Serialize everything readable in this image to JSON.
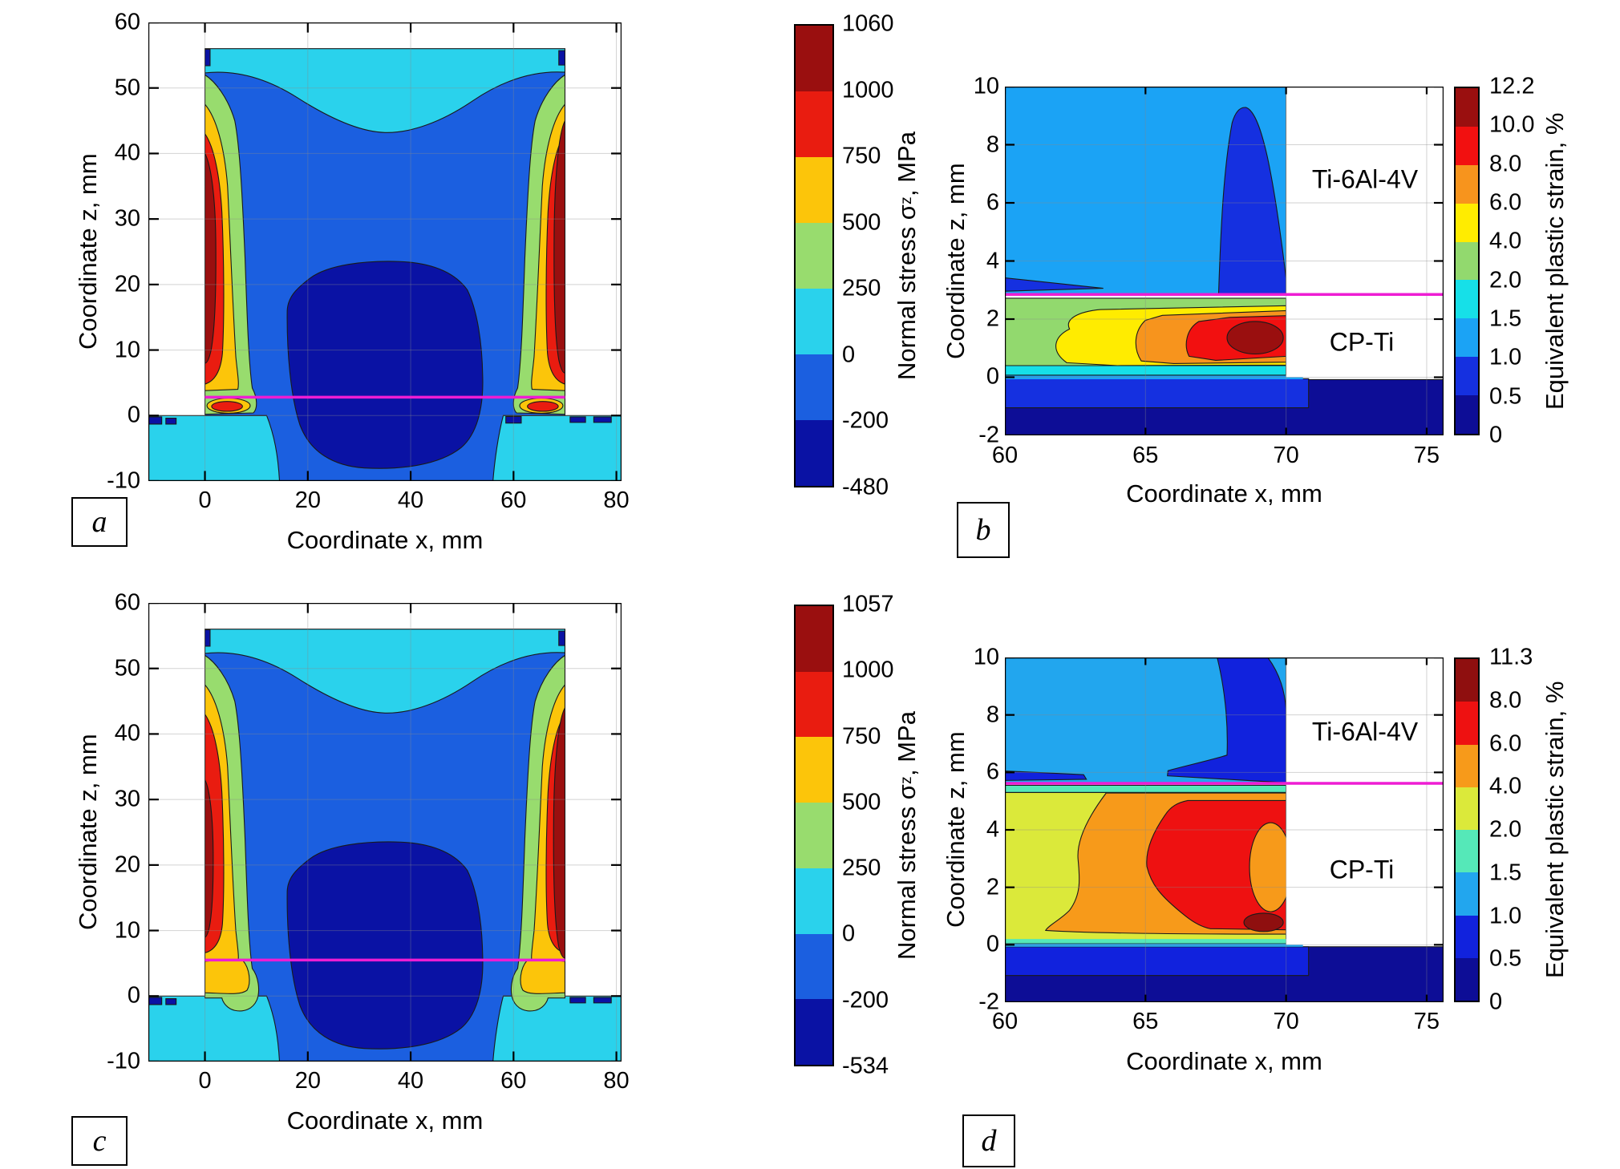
{
  "palette": {
    "interface_line_color": "#ee1dd3",
    "grid_color": "#8a8a8a",
    "frame_color": "#000000"
  },
  "chart_data": [
    {
      "panel": "a",
      "type": "filled_contour",
      "xlabel": "Coordinate x, mm",
      "ylabel": "Coordinate z, mm",
      "xlim": [
        -11,
        81
      ],
      "zlim": [
        -10,
        60
      ],
      "xticks": [
        0,
        20,
        40,
        60,
        80
      ],
      "zticks": [
        60,
        50,
        40,
        30,
        20,
        10,
        0,
        -10
      ],
      "colorbar": {
        "title": {
          "prefix": "Normal stress σ",
          "sub": "z",
          "suffix": ", MPa"
        },
        "tick_labels": [
          "1060",
          "1000",
          "750",
          "500",
          "250",
          "0",
          "-200",
          "-480"
        ],
        "band_colors_top_to_bottom": [
          "#9a0f0f",
          "#e91c10",
          "#fcc50a",
          "#98dc6e",
          "#2ad2ec",
          "#1b5fe0",
          "#0a12a4"
        ]
      },
      "interface_line": {
        "z": 2.8,
        "x_span": [
          0,
          70
        ]
      },
      "annotations": [],
      "description": "Deposited wall (x = 0–70 mm, z = 0–56 mm) on a base plate (z < 0). Tensile normal stress up to ~1060 MPa concentrated along both side surfaces of the wall; compressive core down to −480 MPa in the lower central region; near-zero stress (cyan) in top layers and base plate. Magenta interface line at z ≈ 2.8 mm."
    },
    {
      "panel": "b",
      "type": "filled_contour",
      "xlabel": "Coordinate x, mm",
      "ylabel": "Coordinate z, mm",
      "xlim": [
        60,
        75.6
      ],
      "zlim": [
        -2,
        10
      ],
      "xticks": [
        60,
        65,
        70,
        75
      ],
      "zticks": [
        10,
        8,
        6,
        4,
        2,
        0,
        -2
      ],
      "colorbar": {
        "title": {
          "prefix": "Equivalent plastic strain, %",
          "sub": "",
          "suffix": ""
        },
        "tick_labels": [
          "12.2",
          "10.0",
          "8.0",
          "6.0",
          "4.0",
          "2.0",
          "1.5",
          "1.0",
          "0.5",
          "0"
        ],
        "band_colors_top_to_bottom": [
          "#9a0f0f",
          "#f21010",
          "#f7941d",
          "#ffec00",
          "#92d96e",
          "#16e0e8",
          "#1ba3f5",
          "#1530e0",
          "#0d0d96"
        ]
      },
      "interface_line": {
        "z": 2.85,
        "x_span": [
          60,
          75.6
        ]
      },
      "annotations": [
        {
          "text": "Ti-6Al-4V",
          "x": 72.8,
          "z": 6.8
        },
        {
          "text": "CP-Ti",
          "x": 72.7,
          "z": 1.2
        }
      ],
      "description": "Plastic strain localizes in the CP-Ti layer (z ≈ 0–2.7 mm, x = 60–70 mm) reaching ~12.2 % (dark red) near x ≈ 69 mm; deposited Ti-6Al-4V above the magenta interface (z ≈ 2.85 mm) shows ~1–1.5 % strain; base below z = 0 under 1 %."
    },
    {
      "panel": "c",
      "type": "filled_contour",
      "xlabel": "Coordinate x, mm",
      "ylabel": "Coordinate z, mm",
      "xlim": [
        -11,
        81
      ],
      "zlim": [
        -10,
        60
      ],
      "xticks": [
        0,
        20,
        40,
        60,
        80
      ],
      "zticks": [
        60,
        50,
        40,
        30,
        20,
        10,
        0,
        -10
      ],
      "colorbar": {
        "title": {
          "prefix": "Normal stress σ",
          "sub": "z",
          "suffix": ", MPa"
        },
        "tick_labels": [
          "1057",
          "1000",
          "750",
          "500",
          "250",
          "0",
          "-200",
          "-534"
        ],
        "band_colors_top_to_bottom": [
          "#9a0f0f",
          "#e91c10",
          "#fcc50a",
          "#98dc6e",
          "#2ad2ec",
          "#1b5fe0",
          "#0a12a4"
        ]
      },
      "interface_line": {
        "z": 5.5,
        "x_span": [
          0,
          70
        ]
      },
      "annotations": [],
      "description": "Same wall cross-section with thicker interface layer: magenta line at z ≈ 5.5 mm; tensile peaks ~1057 MPa along wall side surfaces, yellow moderate-stress pockets at the bottom corners, compressive core down to −534 MPa in the lower centre."
    },
    {
      "panel": "d",
      "type": "filled_contour",
      "xlabel": "Coordinate x, mm",
      "ylabel": "Coordinate z, mm",
      "xlim": [
        60,
        75.6
      ],
      "zlim": [
        -2,
        10
      ],
      "xticks": [
        60,
        65,
        70,
        75
      ],
      "zticks": [
        10,
        8,
        6,
        4,
        2,
        0,
        -2
      ],
      "colorbar": {
        "title": {
          "prefix": "Equivalent plastic strain, %",
          "sub": "",
          "suffix": ""
        },
        "tick_labels": [
          "11.3",
          "8.0",
          "6.0",
          "4.0",
          "2.0",
          "1.5",
          "1.0",
          "0.5",
          "0"
        ],
        "band_colors_top_to_bottom": [
          "#8f0f0f",
          "#ee1111",
          "#f79a1a",
          "#dbe93a",
          "#55e8b8",
          "#22a6ee",
          "#1122dd",
          "#0d0d96"
        ]
      },
      "interface_line": {
        "z": 5.62,
        "x_span": [
          60,
          75.6
        ]
      },
      "annotations": [
        {
          "text": "Ti-6Al-4V",
          "x": 72.8,
          "z": 7.4
        },
        {
          "text": "CP-Ti",
          "x": 72.7,
          "z": 2.6
        }
      ],
      "description": "Thicker CP-Ti layer (z ≈ 0–5.4 mm) strained 2–8 % over its full height with red maximum zone near x ≈ 67–70 mm and a small ~11.3 % dark-red spot near x ≈ 69 mm, z ≈ 0.7 mm; Ti-6Al-4V above the magenta interface (z ≈ 5.62 mm) at ~1–1.5 %."
    }
  ]
}
